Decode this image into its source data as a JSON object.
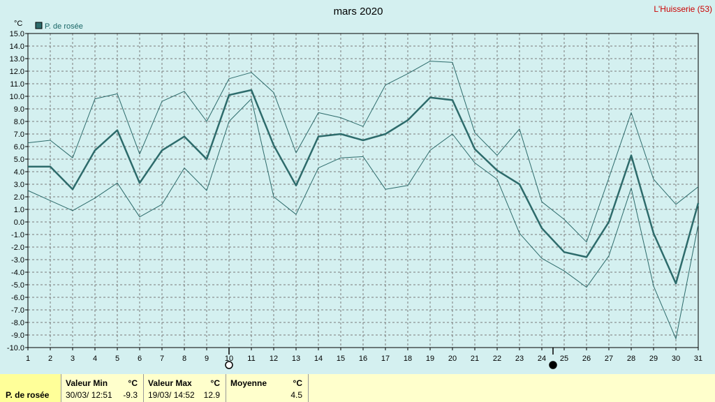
{
  "title": "mars 2020",
  "station": "L'Huisserie (53)",
  "unit": "°C",
  "legend": "P. de rosée",
  "colors": {
    "background": "#d4f0f0",
    "line": "#2d6b6b",
    "grid": "#7a7a7a",
    "station": "#cc0000"
  },
  "chart_data": {
    "type": "line",
    "title": "mars 2020",
    "ylabel": "°C",
    "xlabel": "",
    "ylim": [
      -10,
      15
    ],
    "xlim": [
      1,
      31
    ],
    "grid": true,
    "legend_position": "top-left",
    "x": [
      1,
      2,
      3,
      4,
      5,
      6,
      7,
      8,
      9,
      10,
      11,
      12,
      13,
      14,
      15,
      16,
      17,
      18,
      19,
      20,
      21,
      22,
      23,
      24,
      25,
      26,
      27,
      28,
      29,
      30,
      31
    ],
    "y_ticks": [
      15.0,
      14.0,
      13.0,
      12.0,
      11.0,
      10.0,
      9.0,
      8.0,
      7.0,
      6.0,
      5.0,
      4.0,
      3.0,
      2.0,
      1.0,
      0.0,
      -1.0,
      -2.0,
      -3.0,
      -4.0,
      -5.0,
      -6.0,
      -7.0,
      -8.0,
      -9.0,
      -10.0
    ],
    "series": [
      {
        "name": "P. de rosée",
        "role": "mean",
        "values": [
          4.4,
          4.4,
          2.6,
          5.7,
          7.3,
          3.1,
          5.7,
          6.8,
          5.0,
          10.1,
          10.5,
          6.1,
          2.9,
          6.8,
          7.0,
          6.5,
          7.0,
          8.1,
          9.9,
          9.7,
          5.8,
          4.1,
          3.0,
          -0.5,
          -2.4,
          -2.8,
          0.0,
          5.3,
          -0.9,
          -4.9,
          1.5
        ]
      },
      {
        "role": "max",
        "values": [
          6.3,
          6.5,
          5.1,
          9.8,
          10.2,
          5.4,
          9.6,
          10.4,
          8.0,
          11.4,
          11.9,
          10.3,
          5.5,
          8.7,
          8.3,
          7.6,
          10.9,
          11.8,
          12.8,
          12.7,
          7.1,
          5.3,
          7.4,
          1.6,
          0.2,
          -1.6,
          3.5,
          8.7,
          3.4,
          1.4,
          2.8
        ]
      },
      {
        "role": "min",
        "values": [
          2.5,
          1.7,
          0.9,
          1.9,
          3.1,
          0.4,
          1.4,
          4.3,
          2.5,
          8.0,
          9.8,
          2.0,
          0.6,
          4.3,
          5.1,
          5.2,
          2.6,
          2.9,
          5.7,
          7.0,
          4.7,
          3.4,
          -0.9,
          -2.9,
          -3.9,
          -5.2,
          -2.7,
          2.7,
          -5.1,
          -9.3,
          -0.2
        ]
      }
    ],
    "moon_markers": [
      {
        "x": 10,
        "phase": "full-moon"
      },
      {
        "x": 24.5,
        "phase": "new-moon"
      }
    ]
  },
  "stats": {
    "row_label": "P. de rosée",
    "min": {
      "header": "Valeur Min",
      "unit": "°C",
      "date": "30/03/  12:51",
      "value": "-9.3"
    },
    "max": {
      "header": "Valeur Max",
      "unit": "°C",
      "date": "19/03/  14:52",
      "value": "12.9"
    },
    "avg": {
      "header": "Moyenne",
      "unit": "°C",
      "date": "",
      "value": "4.5"
    }
  }
}
